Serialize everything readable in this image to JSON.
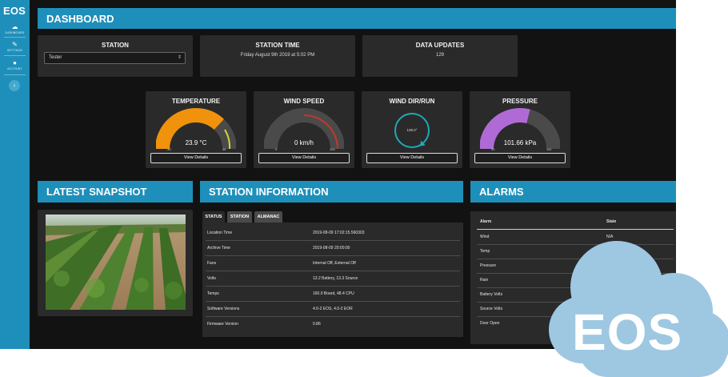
{
  "app": {
    "logo": "EOS",
    "nav": [
      {
        "label": "DASHBOARD",
        "icon": "cloud-icon"
      },
      {
        "label": "SETTINGS",
        "icon": "wrench-icon"
      },
      {
        "label": "ACCOUNT",
        "icon": "user-icon"
      }
    ],
    "collapse_glyph": "›",
    "accent": "#1e8fba"
  },
  "header": {
    "title": "DASHBOARD"
  },
  "station": {
    "title": "STATION",
    "selected": "Tester",
    "caret": "⇕"
  },
  "station_time": {
    "title": "STATION TIME",
    "value": "Friday August 9th 2019 at 5:02 PM"
  },
  "data_updates": {
    "title": "DATA UPDATES",
    "value": "129"
  },
  "gauges": {
    "temperature": {
      "title": "TEMPERATURE",
      "value": "23.9 °C",
      "min": "-40",
      "max": "46",
      "button": "View Details",
      "fraction": 0.74,
      "color": "#f0920c"
    },
    "wind_speed": {
      "title": "WIND SPEED",
      "value": "0 km/h",
      "min": "0",
      "max": "100",
      "button": "View Details",
      "fraction": 0.0,
      "color": "#4a4a4a"
    },
    "wind_dir": {
      "title": "WIND DIR/RUN",
      "value": "138.0°",
      "button": "View Details",
      "degrees": 138,
      "color": "#1ea9b5"
    },
    "pressure": {
      "title": "PRESSURE",
      "value": "101.66 kPa",
      "min": "90",
      "max": "110",
      "button": "View Details",
      "fraction": 0.58,
      "color": "#b06ad6"
    }
  },
  "snapshot": {
    "title": "LATEST SNAPSHOT"
  },
  "info": {
    "title": "STATION INFORMATION",
    "tabs": [
      "STATUS",
      "STATION",
      "ALMANAC"
    ],
    "rows": [
      {
        "k": "Location Time",
        "v": "2019-08-09 17:02:15.560303"
      },
      {
        "k": "Archive Time",
        "v": "2019-08-09 20:00:00"
      },
      {
        "k": "Fans",
        "v": "Internal Off, External Off"
      },
      {
        "k": "Volts",
        "v": "13.2 Battery, 13.3 Source"
      },
      {
        "k": "Temps",
        "v": "160.0 Board, 48.4 CPU"
      },
      {
        "k": "Software Versions",
        "v": "4.0-2 EOS, 4.0-2 EOR"
      },
      {
        "k": "Firmware Version",
        "v": "0.86"
      }
    ]
  },
  "alarms": {
    "title": "ALARMS",
    "headers": {
      "alarm": "Alarm",
      "state": "State"
    },
    "rows": [
      {
        "k": "Wind",
        "v": "N/A"
      },
      {
        "k": "Temp",
        "v": ""
      },
      {
        "k": "Pressure",
        "v": ""
      },
      {
        "k": "Rain",
        "v": ""
      },
      {
        "k": "Battery Volts",
        "v": ""
      },
      {
        "k": "Source Volts",
        "v": ""
      },
      {
        "k": "Door Open",
        "v": ""
      }
    ]
  },
  "cloud_badge": {
    "text": "EOS",
    "color": "#9ec7e2"
  }
}
